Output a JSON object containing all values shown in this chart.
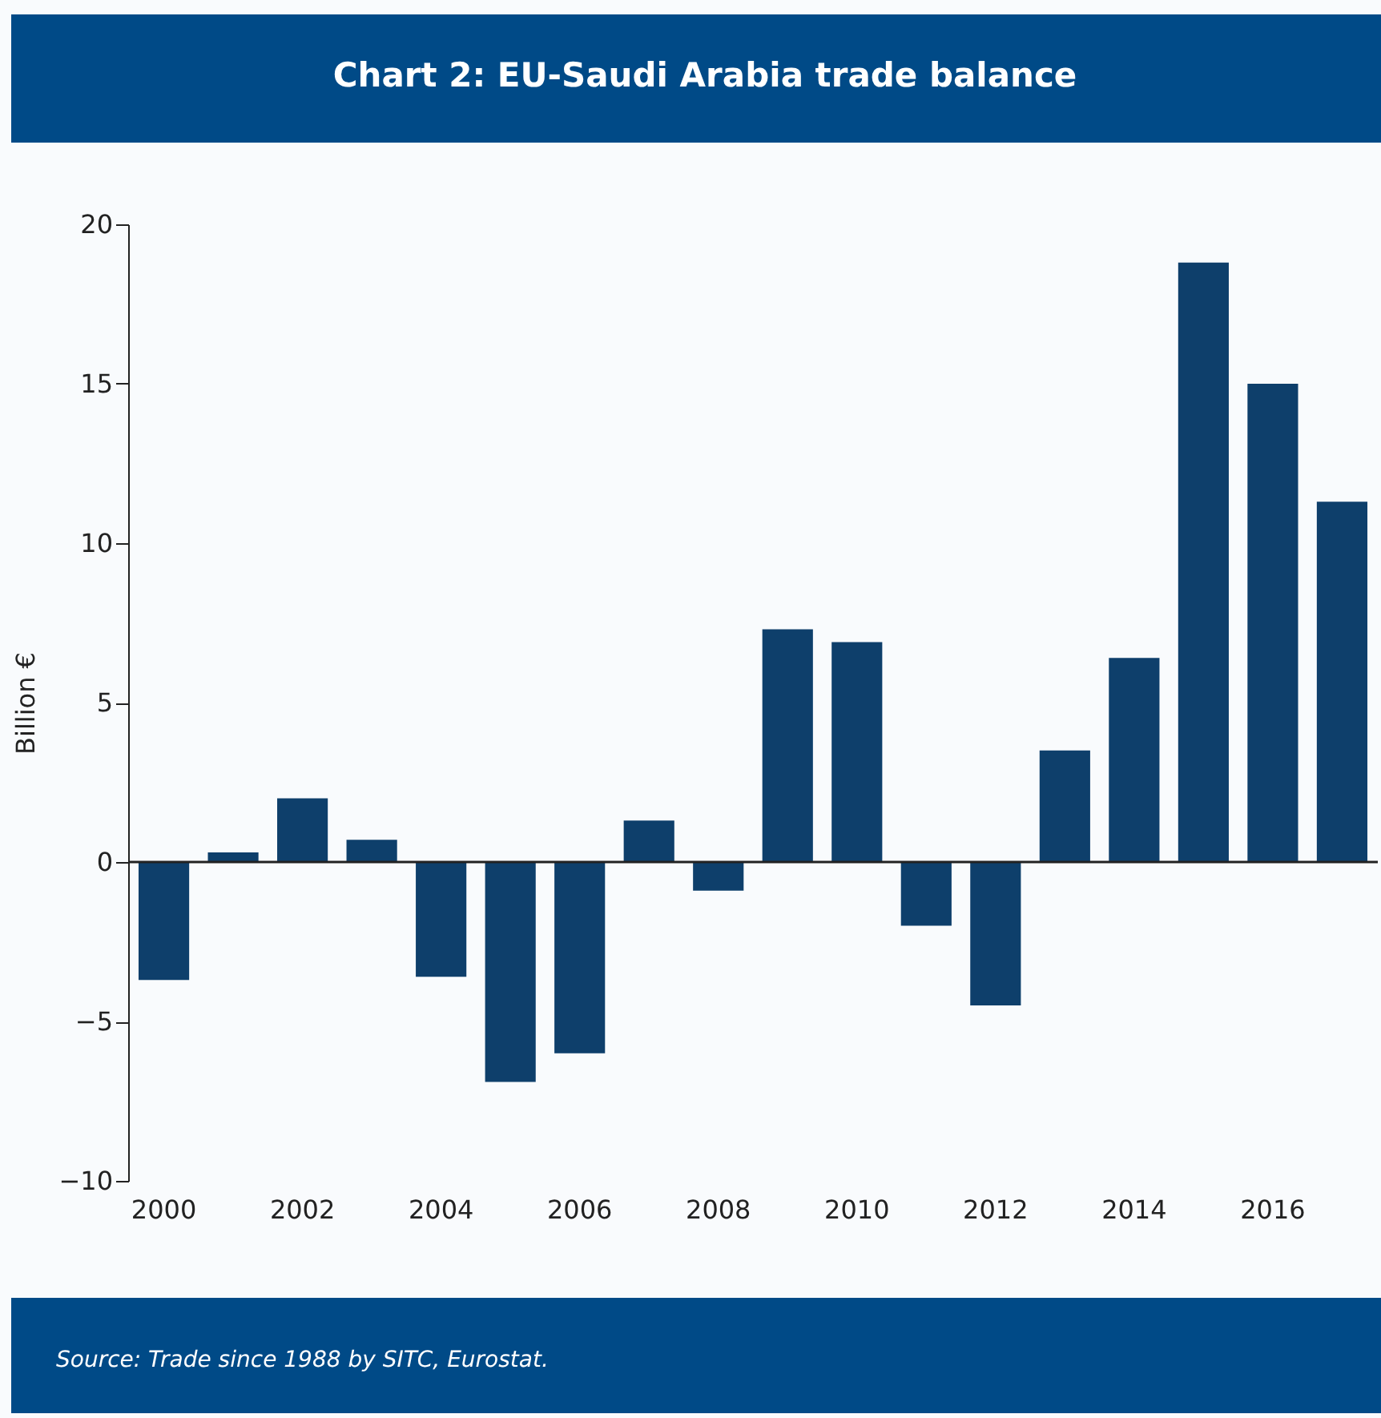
{
  "chart_data": {
    "type": "bar",
    "title": "Chart 2: EU-Saudi Arabia trade balance",
    "ylabel": "Billion €",
    "categories": [
      "2000",
      null,
      "2002",
      null,
      "2004",
      null,
      "2006",
      null,
      "2008",
      null,
      "2010",
      null,
      "2012",
      null,
      "2014",
      null,
      "2016",
      null
    ],
    "values": [
      -3.7,
      0.3,
      2.0,
      0.7,
      -3.6,
      -6.9,
      -6.0,
      1.3,
      -0.9,
      7.3,
      6.9,
      -2.0,
      -4.5,
      3.5,
      6.4,
      18.8,
      15.0,
      11.3
    ],
    "color": "#0e3f6b",
    "ylim": [
      -10,
      20
    ],
    "yticks": [
      -10,
      -5,
      0,
      5,
      10,
      15,
      20
    ],
    "ref_lines": [
      {
        "axis": "y",
        "value": 0,
        "color": "#222222"
      }
    ],
    "annotations": [
      "Source: Trade since 1988 by SITC, Eurostat."
    ]
  }
}
